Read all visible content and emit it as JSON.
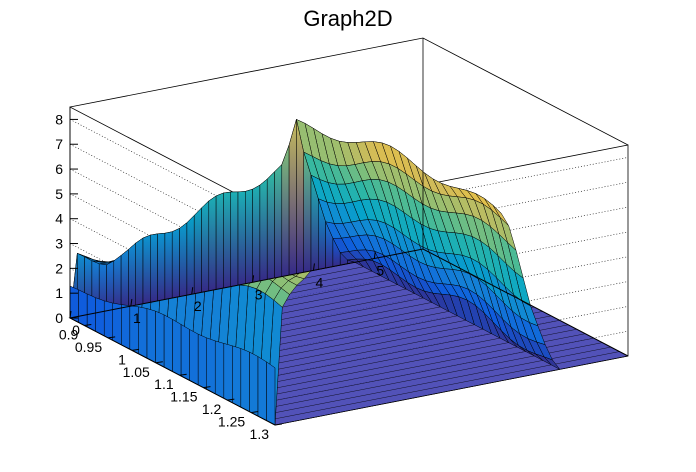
{
  "chart_data": {
    "type": "surface",
    "title": "Graph2D",
    "x_ticks": [
      "0",
      "1",
      "2",
      "3",
      "4",
      "5"
    ],
    "y_ticks": [
      "0.9",
      "0.95",
      "1",
      "1.05",
      "1.1",
      "1.15",
      "1.2",
      "1.25",
      "1.3"
    ],
    "z_ticks": [
      "0",
      "1",
      "2",
      "3",
      "4",
      "5",
      "6",
      "7",
      "8"
    ],
    "xlim": [
      0,
      5.8
    ],
    "ylim": [
      0.87,
      1.3
    ],
    "zlim": [
      0,
      8.5
    ],
    "grid": true,
    "palette": "kBird",
    "palette_colors": [
      "#352a87",
      "#0f5cdd",
      "#1481d6",
      "#06a4ca",
      "#2eb7a4",
      "#87bf77",
      "#d1bb59",
      "#fec832",
      "#f9fb0e"
    ],
    "surface_profile": {
      "x": [
        0.0,
        0.1,
        0.3,
        0.6,
        1.0,
        1.5,
        2.0,
        2.5,
        3.0,
        3.3,
        3.55,
        3.7,
        3.85,
        4.0,
        4.2,
        4.45,
        4.6,
        4.8,
        5.8
      ],
      "z_front": [
        0.0,
        2.4,
        2.3,
        2.1,
        2.2,
        2.7,
        3.2,
        3.6,
        4.0,
        4.2,
        4.4,
        6.2,
        4.6,
        3.6,
        2.1,
        0.6,
        0.0,
        0.0,
        0.0
      ],
      "z_back": [
        0.0,
        4.6,
        5.6,
        6.1,
        6.1,
        6.4,
        6.6,
        6.9,
        7.0,
        7.0,
        6.9,
        6.7,
        6.2,
        5.0,
        3.0,
        1.0,
        0.0,
        0.0,
        0.0
      ]
    }
  }
}
